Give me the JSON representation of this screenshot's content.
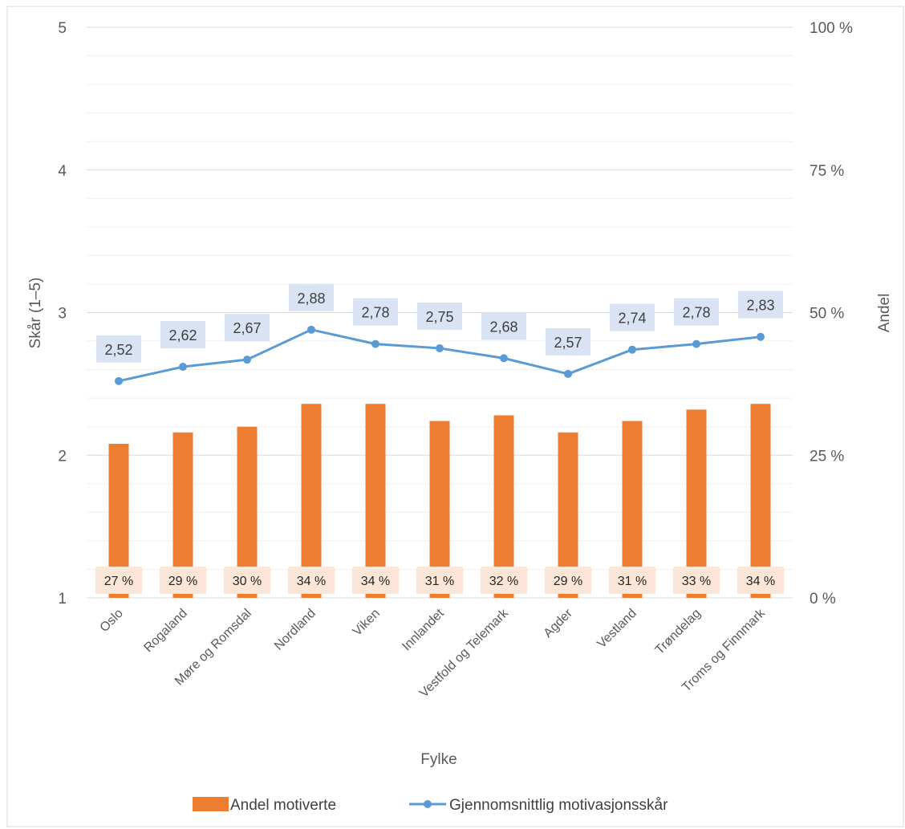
{
  "chart_data": {
    "type": "bar",
    "xlabel": "Fylke",
    "ylabel_left": "Skår (1–5)",
    "ylabel_right": "Andel",
    "categories": [
      "Oslo",
      "Rogaland",
      "Møre og Romsdal",
      "Nordland",
      "Viken",
      "Innlandet",
      "Vestfold og Telemark",
      "Agder",
      "Vestland",
      "Trøndelag",
      "Troms og Finnmark"
    ],
    "left_axis": {
      "min": 1,
      "max": 5,
      "ticks": [
        "1",
        "2",
        "3",
        "4",
        "5"
      ]
    },
    "right_axis": {
      "min": 0,
      "max": 100,
      "ticks": [
        "0 %",
        "25 %",
        "50 %",
        "75 %",
        "100 %"
      ]
    },
    "gridlines": true,
    "legend_position": "bottom",
    "series": [
      {
        "name": "Andel motiverte",
        "type": "bar",
        "axis": "right",
        "color": "#ed7d31",
        "label_bg": "#fbe5d6",
        "values": [
          27,
          29,
          30,
          34,
          34,
          31,
          32,
          29,
          31,
          33,
          34
        ],
        "labels": [
          "27 %",
          "29 %",
          "30 %",
          "34 %",
          "34 %",
          "31 %",
          "32 %",
          "29 %",
          "31 %",
          "33 %",
          "34 %"
        ]
      },
      {
        "name": "Gjennomsnittlig motivasjonsskår",
        "type": "line",
        "axis": "left",
        "color": "#5b9bd5",
        "label_bg": "#dae3f3",
        "values": [
          2.52,
          2.62,
          2.67,
          2.88,
          2.78,
          2.75,
          2.68,
          2.57,
          2.74,
          2.78,
          2.83
        ],
        "labels": [
          "2,52",
          "2,62",
          "2,67",
          "2,88",
          "2,78",
          "2,75",
          "2,68",
          "2,57",
          "2,74",
          "2,78",
          "2,83"
        ]
      }
    ]
  }
}
